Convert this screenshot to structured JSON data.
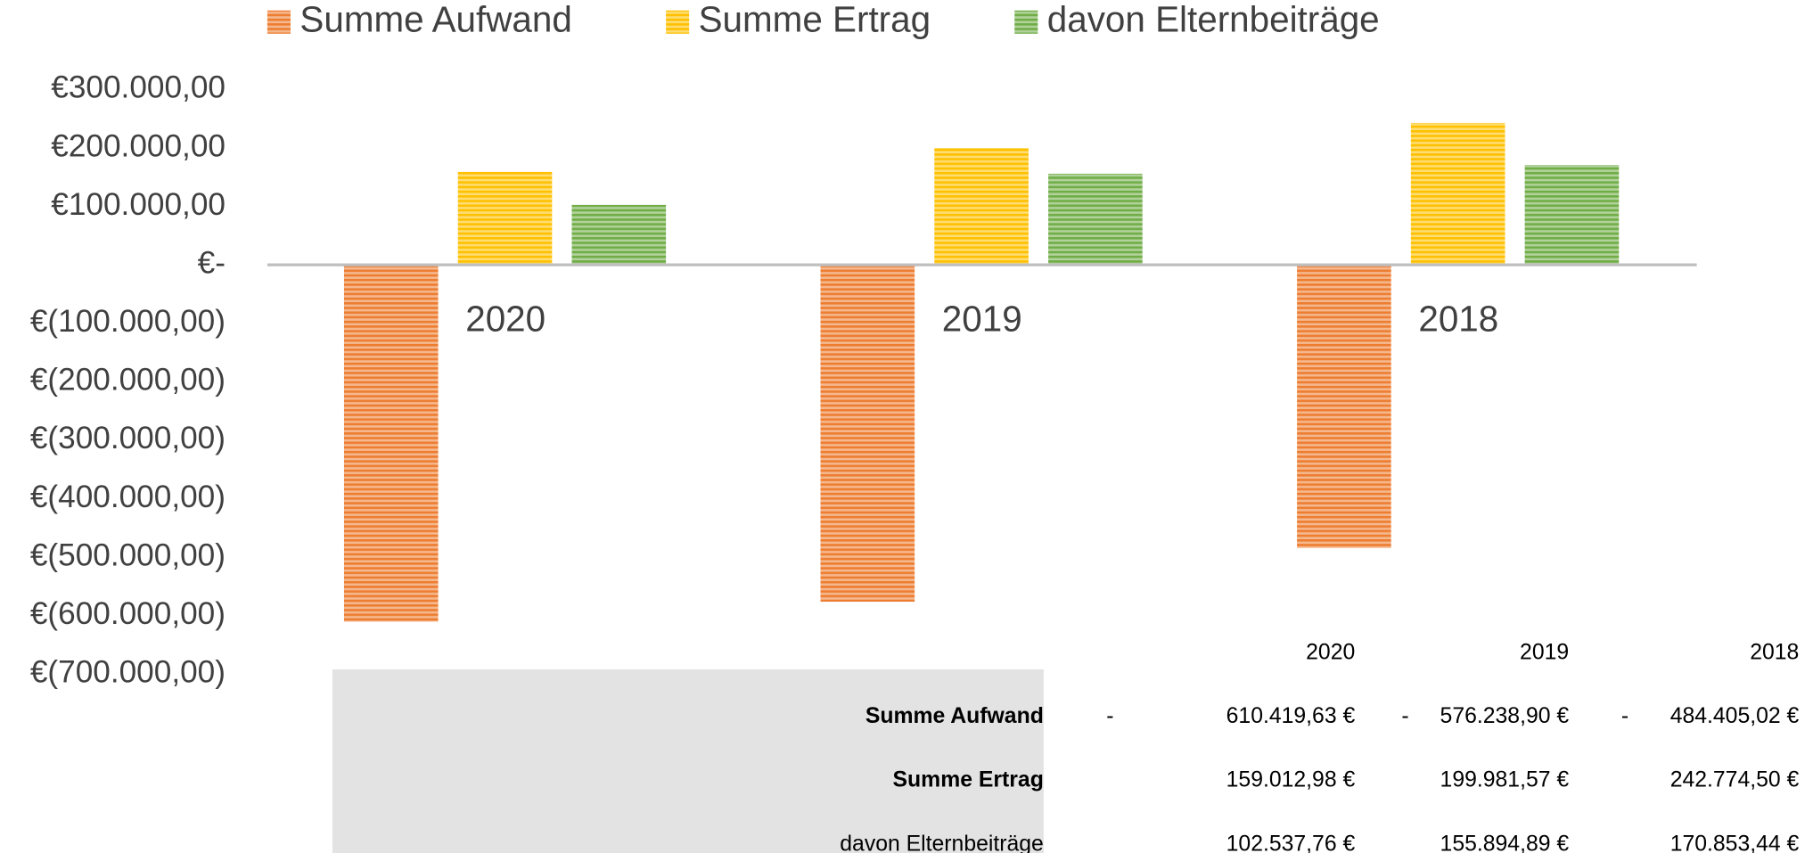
{
  "chart_data": {
    "type": "bar",
    "categories": [
      "2020",
      "2019",
      "2018"
    ],
    "series": [
      {
        "name": "Summe Aufwand",
        "color": "#ed7d31",
        "values": [
          -610419.63,
          -576238.9,
          -484405.02
        ]
      },
      {
        "name": "Summe Ertrag",
        "color": "#ffc000",
        "values": [
          159012.98,
          199981.57,
          242774.5
        ]
      },
      {
        "name": "davon Elternbeiträge",
        "color": "#70ad47",
        "values": [
          102537.76,
          155894.89,
          170853.44
        ]
      }
    ],
    "ylim": [
      -700000,
      300000
    ],
    "yticks": [
      {
        "value": 300000,
        "label": "€300.000,00"
      },
      {
        "value": 200000,
        "label": "€200.000,00"
      },
      {
        "value": 100000,
        "label": "€100.000,00"
      },
      {
        "value": 0,
        "label": "€-"
      },
      {
        "value": -100000,
        "label": "€(100.000,00)"
      },
      {
        "value": -200000,
        "label": "€(200.000,00)"
      },
      {
        "value": -300000,
        "label": "€(300.000,00)"
      },
      {
        "value": -400000,
        "label": "€(400.000,00)"
      },
      {
        "value": -500000,
        "label": "€(500.000,00)"
      },
      {
        "value": -600000,
        "label": "€(600.000,00)"
      },
      {
        "value": -700000,
        "label": "€(700.000,00)"
      }
    ],
    "legend": "top"
  },
  "table": {
    "header": [
      "2020",
      "2019",
      "2018"
    ],
    "rows": [
      {
        "label": "Summe Aufwand",
        "cells": [
          {
            "sign": "-",
            "amount": "610.419,63 €"
          },
          {
            "sign": "-",
            "amount": "576.238,90 €"
          },
          {
            "sign": "-",
            "amount": "484.405,02 €"
          }
        ]
      },
      {
        "label": "Summe Ertrag",
        "cells": [
          {
            "amount": "159.012,98 €"
          },
          {
            "amount": "199.981,57 €"
          },
          {
            "amount": "242.774,50 €"
          }
        ]
      },
      {
        "label": "davon Elternbeiträge",
        "cells": [
          {
            "amount": "102.537,76 €"
          },
          {
            "amount": "155.894,89 €"
          },
          {
            "amount": "170.853,44 €"
          }
        ]
      }
    ]
  }
}
